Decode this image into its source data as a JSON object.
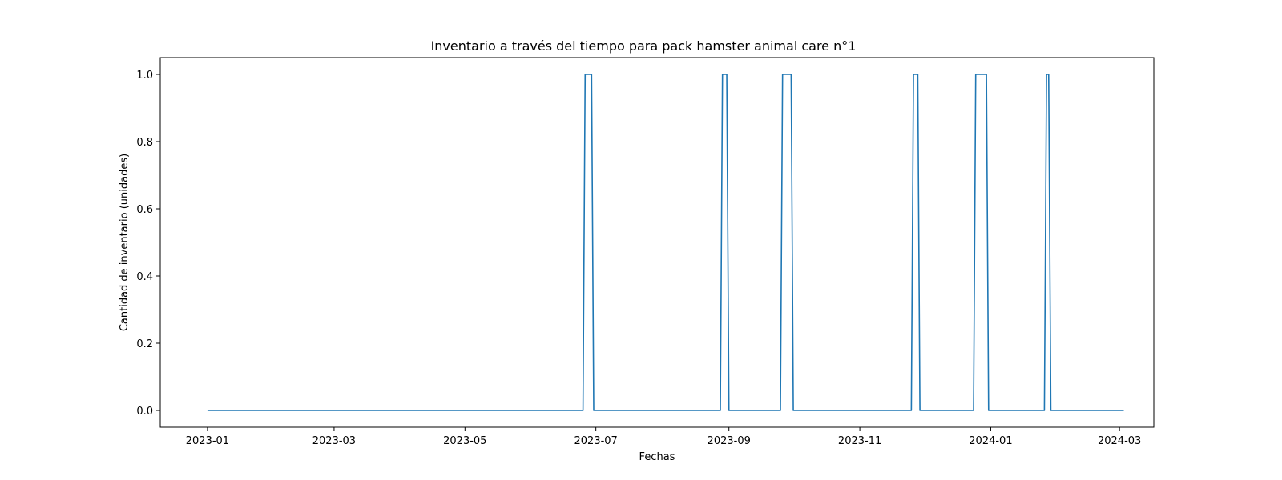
{
  "chart_data": {
    "type": "line",
    "title": "Inventario a través del tiempo para pack hamster  animal care  n°1",
    "xlabel": "Fechas",
    "ylabel": "Cantidad de inventario (unidades)",
    "xlim": [
      "2022-12-10",
      "2024-03-17"
    ],
    "ylim": [
      -0.05,
      1.05
    ],
    "grid": false,
    "line_color": "#1f77b4",
    "x_ticks": [
      "2023-01",
      "2023-03",
      "2023-05",
      "2023-07",
      "2023-09",
      "2023-11",
      "2024-01",
      "2024-03"
    ],
    "y_ticks": [
      "0.0",
      "0.2",
      "0.4",
      "0.6",
      "0.8",
      "1.0"
    ],
    "series": [
      {
        "x": [
          "2023-01-01",
          "2023-06-25",
          "2023-06-26",
          "2023-06-29",
          "2023-06-30",
          "2023-08-28",
          "2023-08-29",
          "2023-08-31",
          "2023-09-01",
          "2023-09-25",
          "2023-09-26",
          "2023-09-30",
          "2023-10-01",
          "2023-11-25",
          "2023-11-26",
          "2023-11-28",
          "2023-11-29",
          "2023-12-24",
          "2023-12-25",
          "2023-12-30",
          "2023-12-31",
          "2024-01-26",
          "2024-01-27",
          "2024-01-28",
          "2024-01-29",
          "2024-03-03"
        ],
        "y": [
          0,
          0,
          1,
          1,
          0,
          0,
          1,
          1,
          0,
          0,
          1,
          1,
          0,
          0,
          1,
          1,
          0,
          0,
          1,
          1,
          0,
          0,
          1,
          1,
          0,
          0
        ]
      }
    ]
  }
}
